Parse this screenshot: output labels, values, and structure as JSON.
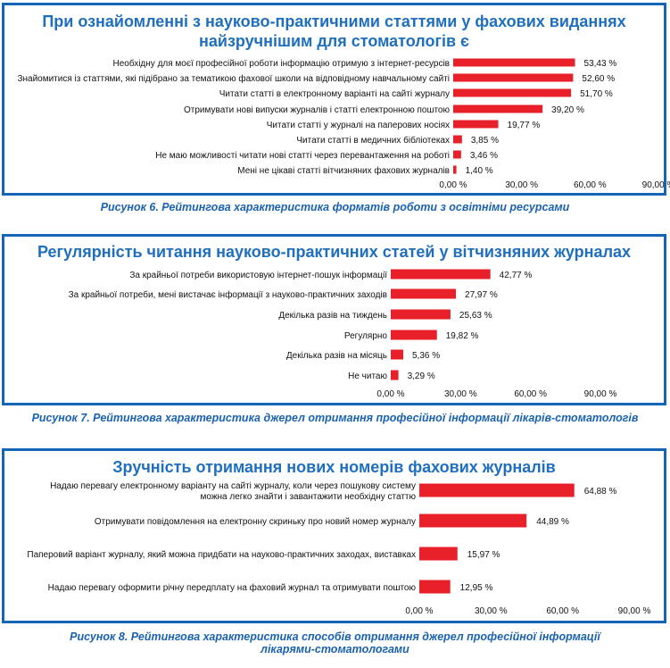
{
  "colors": {
    "bar": "#e8202a",
    "frame": "#1565b7",
    "title": "#1f6fbf",
    "caption": "#1a62b0",
    "axis": "#555555"
  },
  "chart_data": [
    {
      "type": "bar",
      "orientation": "horizontal",
      "title_lines": [
        "При ознайомленні з науково-практичними статтями у фахових виданнях",
        "найзручнішим для стоматологів є"
      ],
      "caption": "Рисунок 6. Рейтингова характеристика форматів роботи з освітніми ресурсами",
      "categories": [
        "Необхідну для моєї професійної роботи інформацію отримую з інтернет-ресурсів",
        "Знайомитися із статтями, які підібрано за тематикою фахової школи на відповідному навчальному сайті",
        "Читати статті в електронному варіанті на сайті журналу",
        "Отримувати нові випуски журналів і статті електронною поштою",
        "Читати статті у журналі на паперових носіях",
        "Читати статті в медичних бібліотеках",
        "Не маю можливості читати нові статті через перевантаження на роботі",
        "Мені не цікаві статті вітчизняних фахових журналів"
      ],
      "values": [
        53.43,
        52.6,
        51.7,
        39.2,
        19.77,
        3.85,
        3.46,
        1.4
      ],
      "value_labels": [
        "53,43 %",
        "52,60 %",
        "51,70 %",
        "39,20 %",
        "19,77 %",
        "3,85 %",
        "3,46 %",
        "1,40 %"
      ],
      "xlim": [
        0,
        90
      ],
      "ticks": [
        "0,00 %",
        "30,00 %",
        "60,00 %",
        "90,00 %"
      ]
    },
    {
      "type": "bar",
      "orientation": "horizontal",
      "title_lines": [
        "Регулярність читання науково-практичних статей у вітчизняних журналах"
      ],
      "caption": "Рисунок 7. Рейтингова характеристика джерел отримання професійної інформації лікарів-стоматологів",
      "categories": [
        "За крайньої потреби використовую інтернет-пошук інформації",
        "За крайньої потреби, мені вистачає інформації з науково-практичних заходів",
        "Декілька разів на тиждень",
        "Регулярно",
        "Декілька разів на місяць",
        "Не читаю"
      ],
      "values": [
        42.77,
        27.97,
        25.63,
        19.82,
        5.36,
        3.29
      ],
      "value_labels": [
        "42,77 %",
        "27,97 %",
        "25,63 %",
        "19,82 %",
        "5,36 %",
        "3,29 %"
      ],
      "xlim": [
        0,
        90
      ],
      "ticks": [
        "0,00 %",
        "30,00 %",
        "60,00 %",
        "90,00 %"
      ]
    },
    {
      "type": "bar",
      "orientation": "horizontal",
      "title_lines": [
        "Зручність отримання нових номерів фахових журналів"
      ],
      "caption_lines": [
        "Рисунок 8. Рейтингова характеристика способів отримання джерел професійної інформації",
        "лікарями-стоматологами"
      ],
      "categories": [
        "Надаю перевагу електронному варіанту на сайті журналу, коли через пошукову систему можна легко знайти і завантажити необхідну статтю",
        "Отримувати повідомлення на електронну скриньку про новий номер журналу",
        "Паперовий варіант журналу, який можна придбати на науково-практичних заходах, виставках",
        "Надаю перевагу оформити річну передплату на фаховий журнал та отримувати поштою"
      ],
      "category_lines": [
        [
          "Надаю перевагу електронному варіанту на сайті журналу, коли через пошукову систему",
          "можна легко знайти і завантажити необхідну статтю"
        ],
        [
          "Отримувати повідомлення на електронну скриньку про новий номер журналу"
        ],
        [
          "Паперовий варіант журналу, який можна придбати на науково-практичних заходах, виставках"
        ],
        [
          "Надаю перевагу оформити річну передплату на фаховий журнал та отримувати поштою"
        ]
      ],
      "values": [
        64.88,
        44.89,
        15.97,
        12.95
      ],
      "value_labels": [
        "64,88 %",
        "44,89 %",
        "15,97 %",
        "12,95 %"
      ],
      "xlim": [
        0,
        90
      ],
      "ticks": [
        "0,00 %",
        "30,00 %",
        "60,00 %",
        "90,00 %"
      ]
    }
  ]
}
